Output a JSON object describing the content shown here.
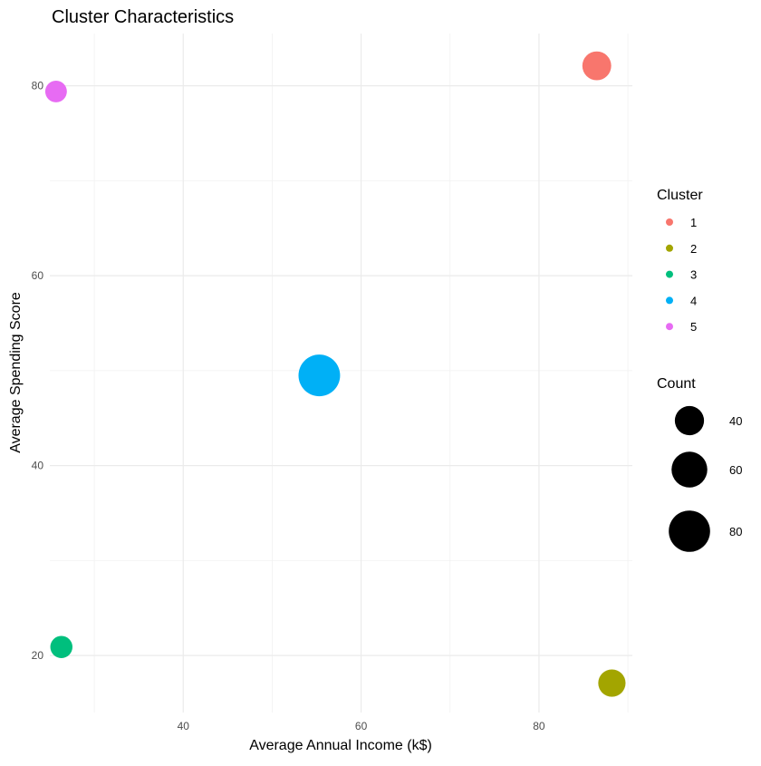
{
  "chart_data": {
    "type": "scatter",
    "title": "Cluster Characteristics",
    "xlabel": "Average Annual Income (k$)",
    "ylabel": "Average Spending Score",
    "xlim": [
      25,
      90.5
    ],
    "ylim": [
      14,
      85.5
    ],
    "x_ticks": [
      40,
      60,
      80
    ],
    "y_ticks": [
      20,
      40,
      60,
      80
    ],
    "x_minor_ticks": [
      30,
      50,
      70,
      90
    ],
    "y_minor_ticks": [
      30,
      50,
      70
    ],
    "grid": true,
    "legend_position": "right",
    "color_legend": {
      "title": "Cluster",
      "entries": [
        {
          "label": "1",
          "color": "#F8766D"
        },
        {
          "label": "2",
          "color": "#A3A500"
        },
        {
          "label": "3",
          "color": "#00BF7D"
        },
        {
          "label": "4",
          "color": "#00B0F6"
        },
        {
          "label": "5",
          "color": "#E76BF3"
        }
      ]
    },
    "size_legend": {
      "title": "Count",
      "entries": [
        {
          "label": "40",
          "value": 40
        },
        {
          "label": "60",
          "value": 60
        },
        {
          "label": "80",
          "value": 80
        }
      ]
    },
    "points": [
      {
        "cluster": "1",
        "x": 86.5,
        "y": 82.1,
        "count": 39
      },
      {
        "cluster": "2",
        "x": 88.2,
        "y": 17.1,
        "count": 35
      },
      {
        "cluster": "3",
        "x": 26.3,
        "y": 20.9,
        "count": 23
      },
      {
        "cluster": "4",
        "x": 55.3,
        "y": 49.5,
        "count": 81
      },
      {
        "cluster": "5",
        "x": 25.7,
        "y": 79.4,
        "count": 22
      }
    ]
  }
}
